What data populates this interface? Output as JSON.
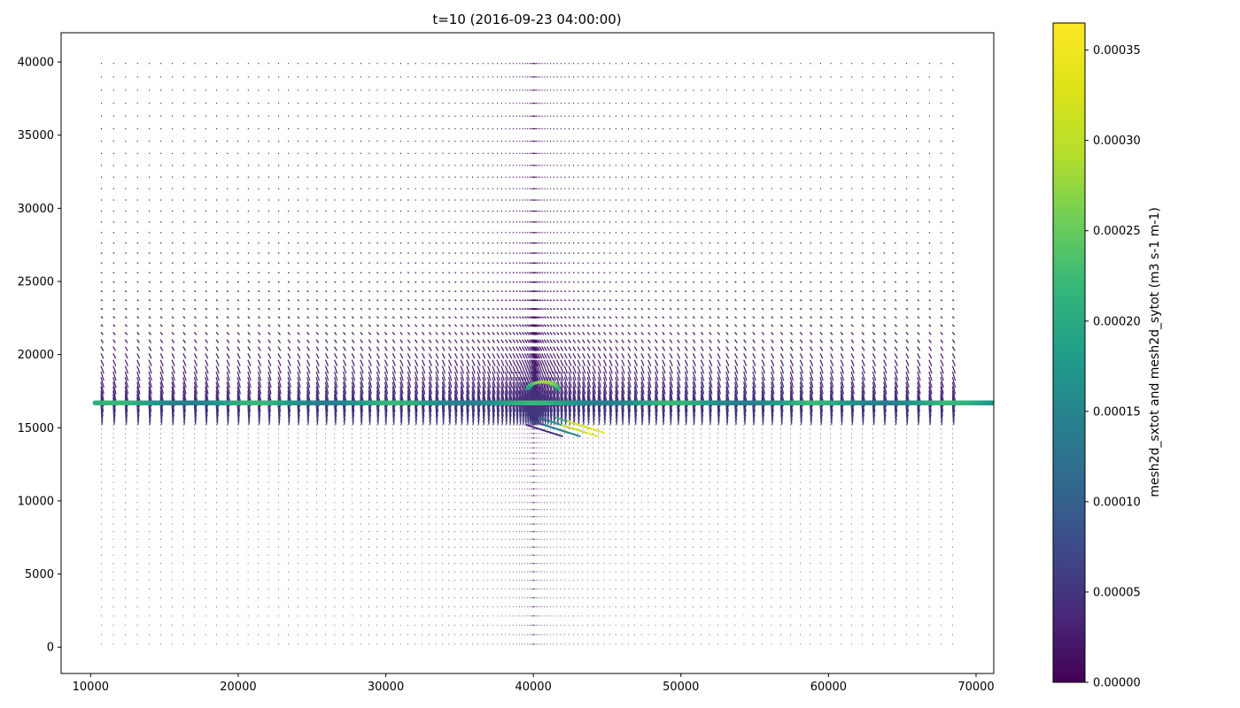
{
  "chart_data": {
    "type": "quiver",
    "title": "t=10 (2016-09-23 04:00:00)",
    "xlim": [
      8000,
      71200
    ],
    "ylim": [
      -1800,
      42000
    ],
    "x_ticks": [
      10000,
      20000,
      30000,
      40000,
      50000,
      60000,
      70000
    ],
    "x_tick_labels": [
      "10000",
      "20000",
      "30000",
      "40000",
      "50000",
      "60000",
      "70000"
    ],
    "y_ticks": [
      0,
      5000,
      10000,
      15000,
      20000,
      25000,
      30000,
      35000,
      40000
    ],
    "y_tick_labels": [
      "0",
      "5000",
      "10000",
      "15000",
      "20000",
      "25000",
      "30000",
      "35000",
      "40000"
    ],
    "grid": false,
    "colorbar": {
      "label": "mesh2d_sxtot and mesh2d_sytot (m3 s-1 m-1)",
      "colormap": "viridis",
      "range": [
        0,
        0.000365
      ],
      "ticks": [
        0,
        5e-05,
        0.0001,
        0.00015,
        0.0002,
        0.00025,
        0.0003,
        0.00035
      ],
      "tick_labels": [
        "0.00000",
        "0.00005",
        "0.00010",
        "0.00015",
        "0.00020",
        "0.00025",
        "0.00030",
        "0.00035"
      ]
    },
    "grid_x_range": [
      10700,
      68400
    ],
    "grid_y_range": [
      200,
      39900
    ],
    "coastline_y": 16700,
    "peak_location": [
      40500,
      17800
    ],
    "colors": {
      "low": "#440154",
      "high": "#fde725",
      "band": "#22a884"
    }
  }
}
